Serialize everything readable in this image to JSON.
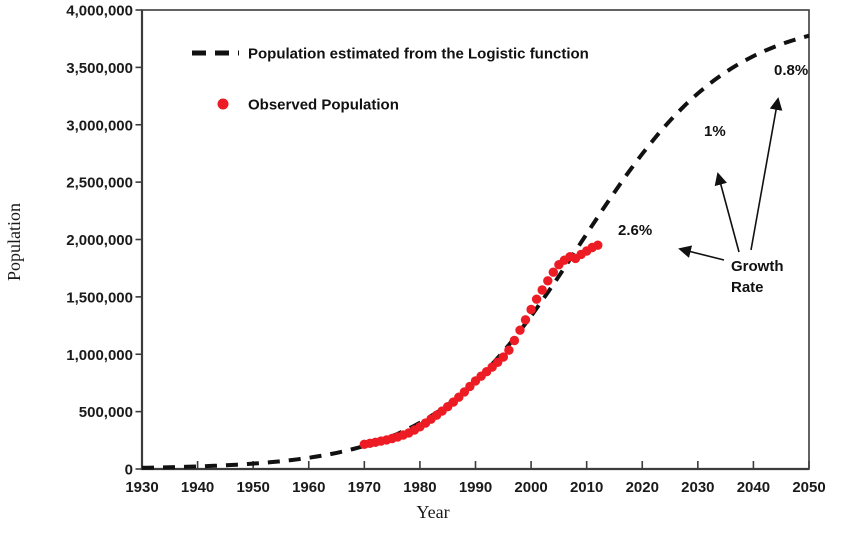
{
  "figure": {
    "background": "#ffffff",
    "axis_color": "#3c3c3c",
    "text_color": "#1a1a1a"
  },
  "axes": {
    "xlabel": "Year",
    "ylabel": "Population"
  },
  "legend": {
    "estimated_label": "Population estimated from the Logistic function",
    "observed_label": "Observed Population"
  },
  "annotations": {
    "rate_2012": "2.6%",
    "rate_2030": "1%",
    "rate_2045": "0.8%",
    "callout_line1": "Growth",
    "callout_line2": "Rate"
  },
  "chart_data": {
    "type": "line",
    "title": "",
    "xlabel": "Year",
    "ylabel": "Population",
    "xlim": [
      1930,
      2050
    ],
    "ylim": [
      0,
      4000000
    ],
    "grid": false,
    "legend_position": "top-left",
    "x_tick_values": [
      1930,
      1940,
      1950,
      1960,
      1970,
      1980,
      1990,
      2000,
      2010,
      2020,
      2030,
      2040,
      2050
    ],
    "x_tick_labels": [
      "1930",
      "1940",
      "1950",
      "1960",
      "1970",
      "1980",
      "1990",
      "2000",
      "2010",
      "2020",
      "2030",
      "2040",
      "2050"
    ],
    "y_tick_values": [
      0,
      500000,
      1000000,
      1500000,
      2000000,
      2500000,
      3000000,
      3500000,
      4000000
    ],
    "y_tick_labels": [
      "0",
      "500,000",
      "1,000,000",
      "1,500,000",
      "2,000,000",
      "2,500,000",
      "3,000,000",
      "3,500,000",
      "4,000,000"
    ],
    "series": [
      {
        "name": "Population estimated from the Logistic function",
        "type": "line",
        "line_style": "dashed",
        "color": "#111111",
        "logistic": {
          "K": 3950000,
          "r": 0.075,
          "t0": 2009,
          "from": 1930,
          "to": 2050
        },
        "sample_points": [
          [
            1930,
            10500
          ],
          [
            1940,
            22200
          ],
          [
            1950,
            46700
          ],
          [
            1960,
            97700
          ],
          [
            1970,
            201200
          ],
          [
            1980,
            403000
          ],
          [
            1990,
            766000
          ],
          [
            2000,
            1333000
          ],
          [
            2010,
            2049000
          ],
          [
            2020,
            2747000
          ],
          [
            2030,
            3272000
          ],
          [
            2040,
            3598000
          ],
          [
            2050,
            3776000
          ]
        ]
      },
      {
        "name": "Observed Population",
        "type": "scatter",
        "color": "#ed1c24",
        "marker_radius": 4.7,
        "points": [
          [
            1970,
            215000
          ],
          [
            1971,
            224000
          ],
          [
            1972,
            233000
          ],
          [
            1973,
            243000
          ],
          [
            1974,
            254000
          ],
          [
            1975,
            266000
          ],
          [
            1976,
            280000
          ],
          [
            1977,
            296000
          ],
          [
            1978,
            315000
          ],
          [
            1979,
            340000
          ],
          [
            1980,
            368000
          ],
          [
            1981,
            400000
          ],
          [
            1982,
            434000
          ],
          [
            1983,
            469000
          ],
          [
            1984,
            505000
          ],
          [
            1985,
            543000
          ],
          [
            1986,
            583000
          ],
          [
            1987,
            626000
          ],
          [
            1988,
            672000
          ],
          [
            1989,
            720000
          ],
          [
            1990,
            768000
          ],
          [
            1991,
            809000
          ],
          [
            1992,
            848000
          ],
          [
            1993,
            888000
          ],
          [
            1994,
            930000
          ],
          [
            1995,
            975000
          ],
          [
            1996,
            1035000
          ],
          [
            1997,
            1120000
          ],
          [
            1998,
            1210000
          ],
          [
            1999,
            1300000
          ],
          [
            2000,
            1390000
          ],
          [
            2001,
            1480000
          ],
          [
            2002,
            1560000
          ],
          [
            2003,
            1640000
          ],
          [
            2004,
            1715000
          ],
          [
            2005,
            1780000
          ],
          [
            2006,
            1820000
          ],
          [
            2007,
            1850000
          ],
          [
            2008,
            1835000
          ],
          [
            2009,
            1870000
          ],
          [
            2010,
            1900000
          ],
          [
            2011,
            1930000
          ],
          [
            2012,
            1950000
          ]
        ]
      }
    ],
    "annotations": [
      {
        "text": "2.6%",
        "at_year": 2012,
        "kind": "growth-rate"
      },
      {
        "text": "1%",
        "at_year": 2030,
        "kind": "growth-rate"
      },
      {
        "text": "0.8%",
        "at_year": 2045,
        "kind": "growth-rate"
      },
      {
        "text": "Growth Rate",
        "kind": "callout"
      }
    ]
  }
}
